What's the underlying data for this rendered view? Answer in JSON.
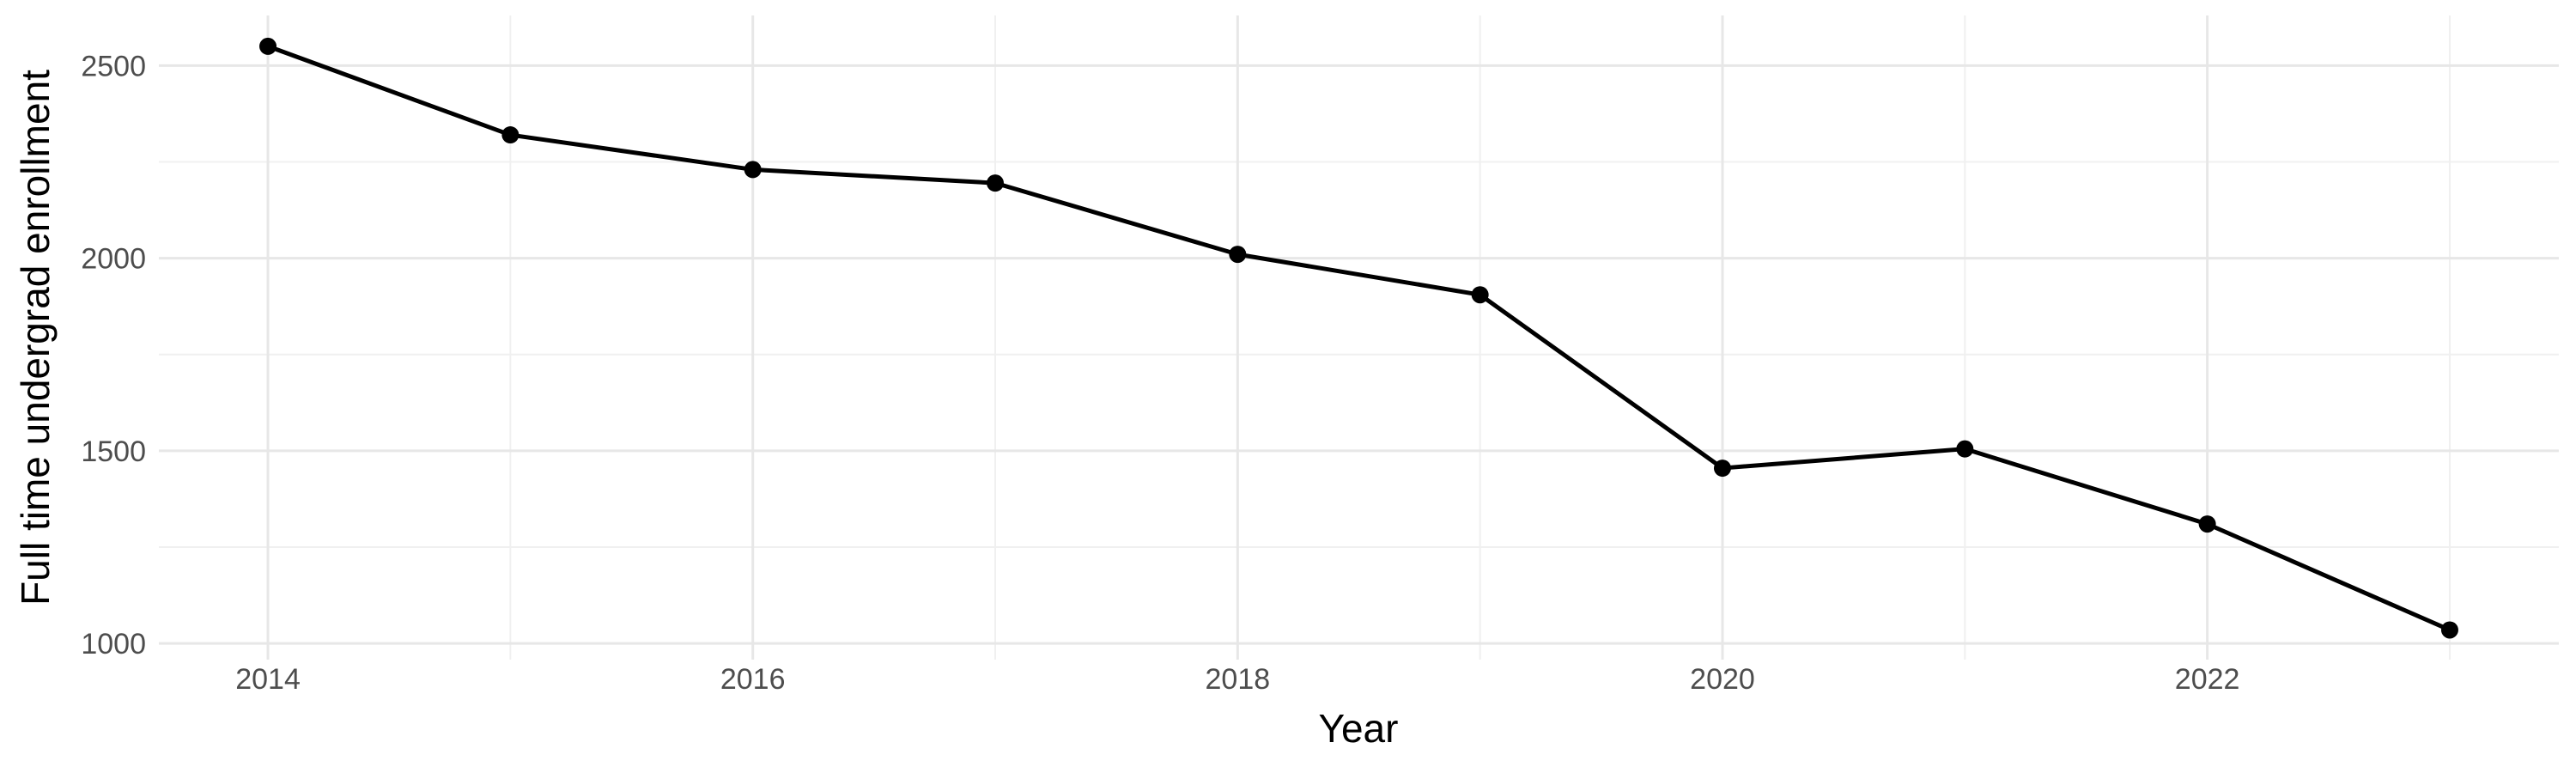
{
  "chart_data": {
    "type": "line",
    "title": "",
    "xlabel": "Year",
    "ylabel": "Full time undergrad enrollment",
    "x": [
      2014,
      2015,
      2016,
      2017,
      2018,
      2019,
      2020,
      2021,
      2022,
      2023
    ],
    "series": [
      {
        "name": "Full time undergrad enrollment",
        "values": [
          2550,
          2320,
          2230,
          2195,
          2010,
          1905,
          1455,
          1505,
          1310,
          1035
        ]
      }
    ],
    "xticks": [
      2014,
      2016,
      2018,
      2020,
      2022
    ],
    "xticks_minor": [
      2015,
      2017,
      2019,
      2021,
      2023
    ],
    "yticks": [
      1000,
      1500,
      2000,
      2500
    ],
    "yticks_minor": [
      1250,
      1750,
      2250
    ],
    "xlim": [
      2013.55,
      2023.45
    ],
    "ylim": [
      958,
      2630
    ],
    "grid": true,
    "legend": "none",
    "marker": "circle",
    "line_color": "#000000",
    "point_color": "#000000",
    "grid_major_color": "#E7E7E7",
    "grid_minor_color": "#F0F0F0",
    "tick_label_color": "#4D4D4D",
    "axis_title_color": "#000000",
    "background_color": "#FFFFFF"
  }
}
